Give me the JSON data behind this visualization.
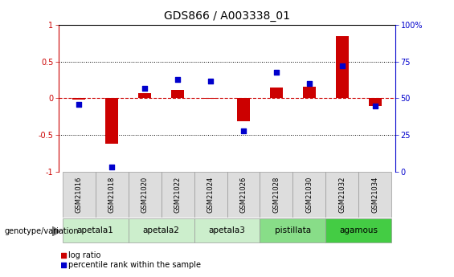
{
  "title": "GDS866 / A003338_01",
  "samples": [
    "GSM21016",
    "GSM21018",
    "GSM21020",
    "GSM21022",
    "GSM21024",
    "GSM21026",
    "GSM21028",
    "GSM21030",
    "GSM21032",
    "GSM21034"
  ],
  "log_ratio": [
    -0.02,
    -0.62,
    0.07,
    0.12,
    -0.01,
    -0.31,
    0.15,
    0.16,
    0.85,
    -0.1
  ],
  "percentile_rank": [
    46,
    3,
    57,
    63,
    62,
    28,
    68,
    60,
    72,
    45
  ],
  "groups": [
    {
      "label": "apetala1",
      "indices": [
        0,
        1
      ],
      "color": "#cceecc"
    },
    {
      "label": "apetala2",
      "indices": [
        2,
        3
      ],
      "color": "#cceecc"
    },
    {
      "label": "apetala3",
      "indices": [
        4,
        5
      ],
      "color": "#cceecc"
    },
    {
      "label": "pistillata",
      "indices": [
        6,
        7
      ],
      "color": "#88dd88"
    },
    {
      "label": "agamous",
      "indices": [
        8,
        9
      ],
      "color": "#44cc44"
    }
  ],
  "ylim_left": [
    -1,
    1
  ],
  "yticks_left": [
    -1,
    -0.5,
    0,
    0.5,
    1
  ],
  "ytick_labels_left": [
    "-1",
    "-0.5",
    "0",
    "0.5",
    "1"
  ],
  "yticks_right_pct": [
    0,
    25,
    50,
    75,
    100
  ],
  "ytick_labels_right": [
    "0",
    "25",
    "50",
    "75",
    "100%"
  ],
  "bar_color": "#cc0000",
  "dot_color": "#0000cc",
  "zero_line_color": "#cc0000",
  "dotted_line_color": "#000000",
  "sample_bg_color": "#dddddd",
  "legend_bar_label": "log ratio",
  "legend_dot_label": "percentile rank within the sample",
  "background_color": "#ffffff",
  "title_fontsize": 10
}
